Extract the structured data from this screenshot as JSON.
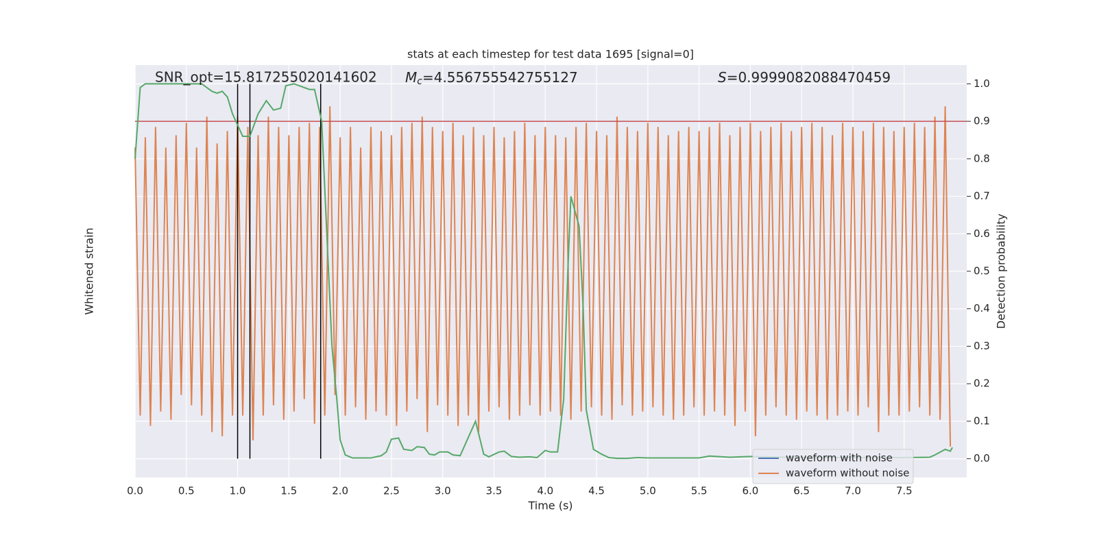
{
  "chart_data": {
    "type": "line",
    "title": "stats at each timestep for test data 1695 [signal=0]",
    "xlabel": "Time (s)",
    "ylabel": "Whitened strain",
    "y2label": "Detection probability",
    "annotations": [
      {
        "text": "SNR_opt=15.817255020141602"
      },
      {
        "symbol": "M",
        "subscript": "c",
        "text": "=4.556755542755127"
      },
      {
        "symbol": "S",
        "text": "=0.9999082088470459"
      }
    ],
    "xlim": [
      0,
      8.11
    ],
    "xticks": [
      {
        "value": 0,
        "label": "0.0"
      },
      {
        "value": 0.5,
        "label": "0.5"
      },
      {
        "value": 1,
        "label": "1.0"
      },
      {
        "value": 1.5,
        "label": "1.5"
      },
      {
        "value": 2,
        "label": "2.0"
      },
      {
        "value": 2.5,
        "label": "2.5"
      },
      {
        "value": 3,
        "label": "3.0"
      },
      {
        "value": 3.5,
        "label": "3.5"
      },
      {
        "value": 4,
        "label": "4.0"
      },
      {
        "value": 4.5,
        "label": "4.5"
      },
      {
        "value": 5,
        "label": "5.0"
      },
      {
        "value": 5.5,
        "label": "5.5"
      },
      {
        "value": 6,
        "label": "6.0"
      },
      {
        "value": 6.5,
        "label": "6.5"
      },
      {
        "value": 7,
        "label": "7.0"
      },
      {
        "value": 7.5,
        "label": "7.5"
      }
    ],
    "ylim": [
      -1,
      1
    ],
    "y2lim": [
      -0.05,
      1.05
    ],
    "y2ticks": [
      {
        "value": 0,
        "label": "0.0"
      },
      {
        "value": 0.1,
        "label": "0.1"
      },
      {
        "value": 0.2,
        "label": "0.2"
      },
      {
        "value": 0.3,
        "label": "0.3"
      },
      {
        "value": 0.4,
        "label": "0.4"
      },
      {
        "value": 0.5,
        "label": "0.5"
      },
      {
        "value": 0.6,
        "label": "0.6"
      },
      {
        "value": 0.7,
        "label": "0.7"
      },
      {
        "value": 0.8,
        "label": "0.8"
      },
      {
        "value": 0.9,
        "label": "0.9"
      },
      {
        "value": 1,
        "label": "1.0"
      }
    ],
    "grid": true,
    "legend": "lower right",
    "threshold": {
      "value": 0.9,
      "color": "#c44e52"
    },
    "vlines": {
      "x": [
        1.0,
        1.12,
        1.81
      ],
      "color": "#000000"
    },
    "series": [
      {
        "name": "waveform with noise",
        "color": "#4c72b0"
      },
      {
        "name": "waveform without noise",
        "color": "#dd8452",
        "x": [
          0,
          0.05,
          0.1,
          0.15,
          0.2,
          0.25,
          0.3,
          0.35,
          0.4,
          0.45,
          0.5,
          0.55,
          0.6,
          0.65,
          0.7,
          0.75,
          0.8,
          0.85,
          0.9,
          0.95,
          1,
          1.05,
          1.1,
          1.15,
          1.2,
          1.25,
          1.3,
          1.35,
          1.4,
          1.45,
          1.5,
          1.55,
          1.6,
          1.65,
          1.7,
          1.75,
          1.8,
          1.85,
          1.9,
          1.95,
          2,
          2.05,
          2.1,
          2.15,
          2.2,
          2.25,
          2.3,
          2.35,
          2.4,
          2.45,
          2.5,
          2.55,
          2.6,
          2.65,
          2.7,
          2.75,
          2.8,
          2.85,
          2.9,
          2.95,
          3,
          3.05,
          3.1,
          3.15,
          3.2,
          3.25,
          3.3,
          3.35,
          3.4,
          3.45,
          3.5,
          3.55,
          3.6,
          3.65,
          3.7,
          3.75,
          3.8,
          3.85,
          3.9,
          3.95,
          4,
          4.05,
          4.1,
          4.15,
          4.2,
          4.25,
          4.3,
          4.35,
          4.4,
          4.45,
          4.5,
          4.55,
          4.6,
          4.65,
          4.7,
          4.75,
          4.8,
          4.85,
          4.9,
          4.95,
          5,
          5.05,
          5.1,
          5.15,
          5.2,
          5.25,
          5.3,
          5.35,
          5.4,
          5.45,
          5.5,
          5.55,
          5.6,
          5.65,
          5.7,
          5.75,
          5.8,
          5.85,
          5.9,
          5.95,
          6,
          6.05,
          6.1,
          6.15,
          6.2,
          6.25,
          6.3,
          6.35,
          6.4,
          6.45,
          6.5,
          6.55,
          6.6,
          6.65,
          6.7,
          6.75,
          6.8,
          6.85,
          6.9,
          6.95,
          7,
          7.05,
          7.1,
          7.15,
          7.2,
          7.25,
          7.3,
          7.35,
          7.4,
          7.45,
          7.5,
          7.55,
          7.6,
          7.65,
          7.7,
          7.75,
          7.8,
          7.85,
          7.9,
          7.95
        ],
        "values": [
          0.6,
          -0.7,
          0.65,
          -0.75,
          0.7,
          -0.68,
          0.6,
          -0.72,
          0.66,
          -0.6,
          0.72,
          -0.65,
          0.6,
          -0.7,
          0.75,
          -0.78,
          0.62,
          -0.8,
          0.68,
          -0.7,
          0.75,
          -0.7,
          0.7,
          -0.82,
          0.66,
          -0.7,
          0.75,
          -0.65,
          0.7,
          -0.72,
          0.66,
          -0.68,
          0.7,
          -0.62,
          0.72,
          -0.74,
          0.7,
          -0.7,
          0.8,
          -0.6,
          0.65,
          -0.7,
          0.7,
          -0.66,
          0.6,
          -0.72,
          0.7,
          -0.68,
          0.68,
          -0.7,
          0.66,
          -0.75,
          0.7,
          -0.68,
          0.72,
          -0.62,
          0.75,
          -0.78,
          0.7,
          -0.65,
          0.68,
          -0.7,
          0.72,
          -0.75,
          0.66,
          -0.7,
          0.7,
          -0.78,
          0.66,
          -0.68,
          0.7,
          -0.66,
          0.65,
          -0.72,
          0.68,
          -0.7,
          0.72,
          -0.65,
          0.66,
          -0.7,
          0.7,
          -0.68,
          0.66,
          -0.7,
          0.65,
          -0.72,
          0.7,
          -0.68,
          0.72,
          -0.66,
          0.68,
          -0.7,
          0.66,
          -0.72,
          0.75,
          -0.65,
          0.7,
          -0.7,
          0.68,
          -0.68,
          0.72,
          -0.66,
          0.7,
          -0.7,
          0.66,
          -0.72,
          0.68,
          -0.7,
          0.7,
          -0.66,
          0.68,
          -0.7,
          0.7,
          -0.68,
          0.72,
          -0.7,
          0.66,
          -0.75,
          0.7,
          -0.68,
          0.72,
          -0.8,
          0.68,
          -0.7,
          0.7,
          -0.66,
          0.72,
          -0.7,
          0.68,
          -0.72,
          0.7,
          -0.68,
          0.72,
          -0.7,
          0.7,
          -0.72,
          0.66,
          -0.7,
          0.72,
          -0.68,
          0.7,
          -0.7,
          0.68,
          -0.66,
          0.72,
          -0.78,
          0.7,
          -0.7,
          0.68,
          -0.7,
          0.7,
          -0.68,
          0.72,
          -0.66,
          0.7,
          -0.7,
          0.75,
          -0.72,
          0.8,
          -0.85
        ]
      }
    ],
    "probability": {
      "color": "#55a868",
      "axis": "y2",
      "x": [
        0,
        0.05,
        0.1,
        0.5,
        0.65,
        0.75,
        0.8,
        0.85,
        0.9,
        0.95,
        1.05,
        1.12,
        1.2,
        1.28,
        1.35,
        1.42,
        1.47,
        1.55,
        1.6,
        1.7,
        1.75,
        1.82,
        1.87,
        1.92,
        1.97,
        2,
        2.05,
        2.12,
        2.3,
        2.4,
        2.45,
        2.5,
        2.57,
        2.62,
        2.7,
        2.75,
        2.82,
        2.87,
        2.92,
        2.97,
        3.05,
        3.1,
        3.17,
        3.32,
        3.4,
        3.45,
        3.55,
        3.6,
        3.67,
        3.75,
        3.85,
        3.92,
        4,
        4.05,
        4.12,
        4.18,
        4.22,
        4.25,
        4.3,
        4.33,
        4.37,
        4.4,
        4.47,
        4.55,
        4.62,
        4.7,
        4.8,
        4.9,
        5,
        5.5,
        5.6,
        5.8,
        6,
        6.5,
        7,
        7.5,
        7.75,
        7.8,
        7.9,
        7.95,
        7.97
      ],
      "values": [
        0.8,
        0.99,
        1,
        1,
        1,
        0.98,
        0.975,
        0.98,
        0.965,
        0.92,
        0.86,
        0.86,
        0.92,
        0.955,
        0.93,
        0.935,
        0.995,
        1,
        0.995,
        0.985,
        0.985,
        0.9,
        0.6,
        0.3,
        0.15,
        0.05,
        0.01,
        0.002,
        0.002,
        0.008,
        0.018,
        0.052,
        0.055,
        0.025,
        0.022,
        0.032,
        0.03,
        0.012,
        0.01,
        0.018,
        0.018,
        0.01,
        0.008,
        0.1,
        0.012,
        0.005,
        0.018,
        0.02,
        0.006,
        0.004,
        0.005,
        0.003,
        0.022,
        0.018,
        0.018,
        0.16,
        0.5,
        0.7,
        0.65,
        0.62,
        0.4,
        0.13,
        0.025,
        0.012,
        0.003,
        0.001,
        0.001,
        0.003,
        0.002,
        0.002,
        0.007,
        0.004,
        0.006,
        0.003,
        0.003,
        0.003,
        0.004,
        0.01,
        0.025,
        0.02,
        0.03
      ]
    }
  }
}
